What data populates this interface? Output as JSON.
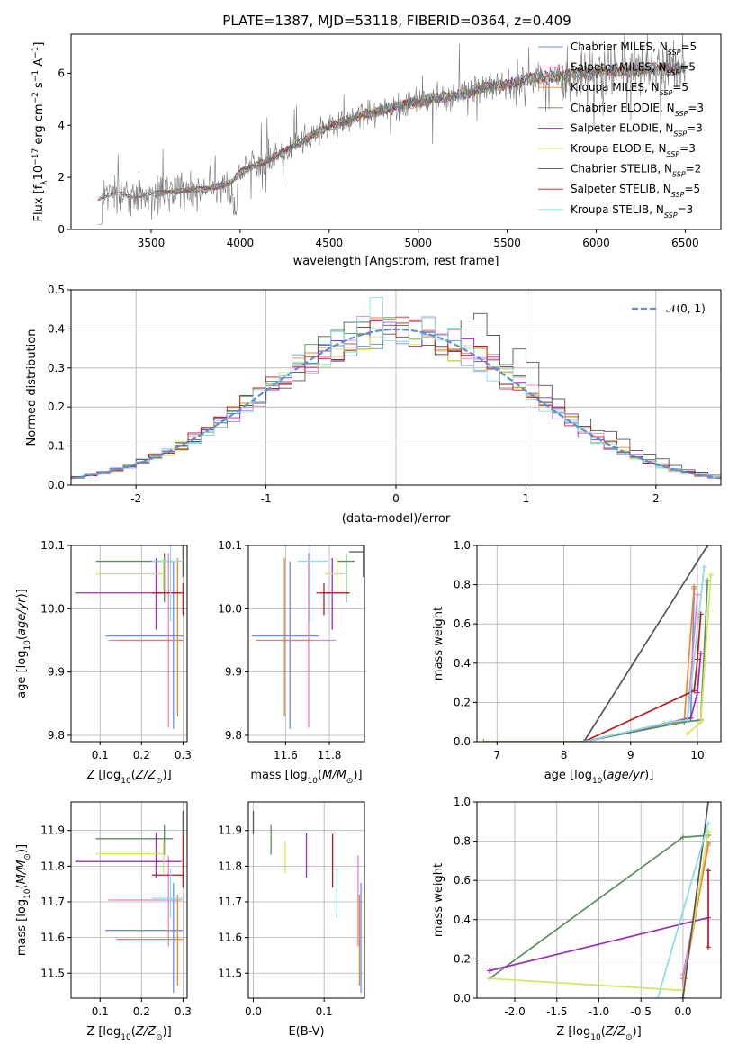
{
  "figure_title": "PLATE=1387, MJD=53118, FIBERID=0364, z=0.409",
  "colors": {
    "chabrier_miles": "#6b8ff0",
    "salpeter_miles": "#f07fc0",
    "kroupa_miles": "#e8872a",
    "chabrier_elodie": "#5e8c62",
    "salpeter_elodie": "#9b30b0",
    "kroupa_elodie": "#d4e55b",
    "chabrier_stelib": "#555555",
    "salpeter_stelib": "#b81c1c",
    "kroupa_stelib": "#84dfe6",
    "data": "#777777",
    "normal": "#5b8fd6"
  },
  "chart_data": [
    {
      "id": "spectrum",
      "type": "line",
      "title": "PLATE=1387, MJD=53118, FIBERID=0364, z=0.409",
      "xlabel": "wavelength [Angstrom, rest frame]",
      "ylabel": "Flux [f_λ 10^-17 erg cm^-2 s^-1 A^-1]",
      "xlim": [
        3050,
        6700
      ],
      "ylim": [
        0,
        7.5
      ],
      "xticks": [
        3500,
        4000,
        4500,
        5000,
        5500,
        6000,
        6500
      ],
      "yticks": [
        0,
        2,
        4,
        6
      ],
      "grid": false,
      "legend_position": "top-right",
      "legend": [
        {
          "label": "Chabrier MILES, N_SSP=5",
          "text": "Chabrier MILES, N",
          "sub": "SSP",
          "tail": "=5",
          "color_key": "chabrier_miles"
        },
        {
          "label": "Salpeter MILES, N_SSP=5",
          "text": "Salpeter MILES, N",
          "sub": "SSP",
          "tail": "=5",
          "color_key": "salpeter_miles"
        },
        {
          "label": "Kroupa MILES, N_SSP=5",
          "text": "Kroupa MILES, N",
          "sub": "SSP",
          "tail": "=5",
          "color_key": "kroupa_miles"
        },
        {
          "label": "Chabrier ELODIE, N_SSP=3",
          "text": "Chabrier ELODIE, N",
          "sub": "SSP",
          "tail": "=3",
          "color_key": "chabrier_elodie"
        },
        {
          "label": "Salpeter ELODIE, N_SSP=3",
          "text": "Salpeter ELODIE, N",
          "sub": "SSP",
          "tail": "=3",
          "color_key": "salpeter_elodie"
        },
        {
          "label": "Kroupa ELODIE, N_SSP=3",
          "text": "Kroupa ELODIE, N",
          "sub": "SSP",
          "tail": "=3",
          "color_key": "kroupa_elodie"
        },
        {
          "label": "Chabrier STELIB, N_SSP=2",
          "text": "Chabrier STELIB, N",
          "sub": "SSP",
          "tail": "=2",
          "color_key": "chabrier_stelib"
        },
        {
          "label": "Salpeter STELIB, N_SSP=5",
          "text": "Salpeter STELIB, N",
          "sub": "SSP",
          "tail": "=5",
          "color_key": "salpeter_stelib"
        },
        {
          "label": "Kroupa STELIB, N_SSP=3",
          "text": "Kroupa STELIB, N",
          "sub": "SSP",
          "tail": "=3",
          "color_key": "kroupa_stelib"
        }
      ],
      "continuum": {
        "x": [
          3200,
          3300,
          3400,
          3500,
          3600,
          3700,
          3800,
          3900,
          3950,
          4000,
          4100,
          4200,
          4300,
          4400,
          4500,
          4600,
          4700,
          4800,
          4900,
          5000,
          5100,
          5200,
          5300,
          5400,
          5500,
          5600,
          5700,
          5800,
          5900,
          6000,
          6100,
          6200,
          6300,
          6400,
          6500
        ],
        "y": [
          1.2,
          1.35,
          1.3,
          1.35,
          1.45,
          1.5,
          1.55,
          1.7,
          1.8,
          2.2,
          2.5,
          2.8,
          3.2,
          3.6,
          3.95,
          4.2,
          4.4,
          4.6,
          4.75,
          4.9,
          5.05,
          5.15,
          5.3,
          5.45,
          5.6,
          5.75,
          5.85,
          5.9,
          6.0,
          6.05,
          6.1,
          6.1,
          6.15,
          6.2,
          6.2
        ]
      },
      "model_x_range": [
        3200,
        6500
      ],
      "data_x_range": [
        3200,
        6500
      ]
    },
    {
      "id": "residual_histogram",
      "type": "line",
      "xlabel": "(data-model)/error",
      "ylabel": "Normed distribution",
      "xlim": [
        -2.5,
        2.5
      ],
      "ylim": [
        0,
        0.5
      ],
      "xticks": [
        -2,
        -1,
        0,
        1,
        2
      ],
      "yticks": [
        0,
        0.1,
        0.2,
        0.3,
        0.4,
        0.5
      ],
      "grid": true,
      "legend_position": "top-right",
      "legend": [
        {
          "label": "N(0,1)",
          "text": "𝒩(0, 1)",
          "color_key": "normal"
        }
      ],
      "normal_curve": {
        "mean": 0,
        "sigma": 1
      },
      "bin_width": 0.1
    },
    {
      "id": "age_vs_Z",
      "type": "scatter",
      "xlabel": "Z [log10(Z/Z⊙)]",
      "ylabel": "age [log10(age/yr)]",
      "xlim": [
        0.03,
        0.31
      ],
      "ylim": [
        9.79,
        10.1
      ],
      "xticks": [
        0.1,
        0.2,
        0.3
      ],
      "yticks": [
        9.8,
        9.9,
        10.0,
        10.1
      ],
      "grid": true
    },
    {
      "id": "age_vs_mass",
      "type": "scatter",
      "xlabel": "mass [log10(M/M⊙)]",
      "ylabel": "",
      "xlim": [
        11.43,
        11.96
      ],
      "ylim": [
        9.79,
        10.1
      ],
      "xticks": [
        11.6,
        11.8
      ],
      "yticks": [
        9.8,
        9.9,
        10.0,
        10.1
      ],
      "grid": true
    },
    {
      "id": "weight_vs_age",
      "type": "line",
      "xlabel": "age [log10(age/yr)]",
      "ylabel": "mass weight",
      "xlim": [
        6.7,
        10.35
      ],
      "ylim": [
        0,
        1
      ],
      "xticks": [
        7,
        8,
        9,
        10
      ],
      "yticks": [
        0,
        0.2,
        0.4,
        0.6,
        0.8,
        1.0
      ],
      "grid": true
    },
    {
      "id": "mass_vs_Z",
      "type": "scatter",
      "xlabel": "Z [log10(Z/Z⊙)]",
      "ylabel": "mass [log10(M/M⊙)]",
      "xlim": [
        0.03,
        0.31
      ],
      "ylim": [
        11.43,
        11.98
      ],
      "xticks": [
        0.1,
        0.2,
        0.3
      ],
      "yticks": [
        11.5,
        11.6,
        11.7,
        11.8,
        11.9
      ],
      "grid": true
    },
    {
      "id": "mass_vs_ebv",
      "type": "scatter",
      "xlabel": "E(B-V)",
      "ylabel": "",
      "xlim": [
        -0.007,
        0.157
      ],
      "ylim": [
        11.43,
        11.98
      ],
      "xticks": [
        0.0,
        0.1
      ],
      "yticks": [
        11.5,
        11.6,
        11.7,
        11.8,
        11.9
      ],
      "grid": true
    },
    {
      "id": "weight_vs_Z",
      "type": "line",
      "xlabel": "Z [log10(Z/Z⊙)]",
      "ylabel": "mass weight",
      "xlim": [
        -2.45,
        0.45
      ],
      "ylim": [
        0,
        1
      ],
      "xticks": [
        -2.0,
        -1.5,
        -1.0,
        -0.5,
        0.0
      ],
      "yticks": [
        0,
        0.2,
        0.4,
        0.6,
        0.8,
        1.0
      ],
      "grid": true
    }
  ],
  "models": [
    {
      "key": "chabrier_miles",
      "Z": 0.277,
      "Zlo": 0.113,
      "Zhi": 0.3,
      "age": 9.957,
      "ageLo": 9.81,
      "ageHi": 10.075,
      "mass": 11.62,
      "massLo": 11.445,
      "massHi": 11.753,
      "ebv": 0.152,
      "cum_age": [
        [
          8.3,
          0.0
        ],
        [
          9.6,
          0.1
        ],
        [
          9.9,
          0.12
        ],
        [
          9.95,
          0.78
        ]
      ],
      "cum_Z": [
        [
          0.0,
          0.0
        ],
        [
          0.0,
          0.1
        ],
        [
          0.3,
          0.78
        ]
      ]
    },
    {
      "key": "salpeter_miles",
      "Z": 0.265,
      "Zlo": 0.12,
      "Zhi": 0.298,
      "age": 9.95,
      "ageLo": 9.812,
      "ageHi": 10.088,
      "mass": 11.705,
      "massLo": 11.575,
      "massHi": 11.83,
      "ebv": 0.148,
      "cum_age": [
        [
          8.3,
          0.0
        ],
        [
          9.6,
          0.1
        ],
        [
          9.85,
          0.12
        ],
        [
          10.0,
          0.75
        ]
      ],
      "cum_Z": [
        [
          0.0,
          0.0
        ],
        [
          0.0,
          0.12
        ],
        [
          0.29,
          0.75
        ]
      ]
    },
    {
      "key": "kroupa_miles",
      "Z": 0.287,
      "Zlo": 0.14,
      "Zhi": 0.3,
      "age": 9.95,
      "ageLo": 9.83,
      "ageHi": 10.08,
      "mass": 11.595,
      "massLo": 11.465,
      "massHi": 11.72,
      "ebv": 0.15,
      "cum_age": [
        [
          6.8,
          0.0
        ],
        [
          8.3,
          0.0
        ],
        [
          9.5,
          0.09
        ],
        [
          9.8,
          0.1
        ],
        [
          9.95,
          0.79
        ]
      ],
      "cum_Z": [
        [
          0.0,
          0.0
        ],
        [
          0.02,
          0.1
        ],
        [
          0.3,
          0.79
        ]
      ]
    },
    {
      "key": "chabrier_elodie",
      "Z": 0.255,
      "Zlo": 0.09,
      "Zhi": 0.276,
      "age": 10.075,
      "ageLo": 10.01,
      "ageHi": 10.088,
      "mass": 11.877,
      "massLo": 11.832,
      "massHi": 11.915,
      "ebv": 0.025,
      "cum_age": [
        [
          8.3,
          0.0
        ],
        [
          9.8,
          0.1
        ],
        [
          10.05,
          0.11
        ],
        [
          10.15,
          0.82
        ]
      ],
      "cum_Z": [
        [
          -2.3,
          0.1
        ],
        [
          0.0,
          0.82
        ],
        [
          0.3,
          0.83
        ]
      ]
    },
    {
      "key": "salpeter_elodie",
      "Z": 0.235,
      "Zlo": 0.04,
      "Zhi": 0.296,
      "age": 10.025,
      "ageLo": 9.967,
      "ageHi": 10.08,
      "mass": 11.813,
      "massLo": 11.768,
      "massHi": 11.893,
      "ebv": 0.075,
      "cum_age": [
        [
          8.3,
          0.0
        ],
        [
          9.9,
          0.12
        ],
        [
          10.0,
          0.25
        ],
        [
          10.05,
          0.45
        ]
      ],
      "cum_Z": [
        [
          -2.3,
          0.14
        ],
        [
          0.3,
          0.41
        ]
      ]
    },
    {
      "key": "kroupa_elodie",
      "Z": 0.253,
      "Zlo": 0.09,
      "Zhi": 0.253,
      "age": 10.055,
      "ageLo": 10.03,
      "ageHi": 10.08,
      "mass": 11.835,
      "massLo": 11.78,
      "massHi": 11.87,
      "ebv": 0.045,
      "cum_age": [
        [
          9.85,
          0.04
        ],
        [
          10.05,
          0.1
        ],
        [
          10.2,
          0.85
        ]
      ],
      "cum_Z": [
        [
          -2.3,
          0.1
        ],
        [
          0.0,
          0.04
        ],
        [
          0.3,
          0.85
        ]
      ]
    },
    {
      "key": "chabrier_stelib",
      "Z": 0.3,
      "Zlo": 0.3,
      "Zhi": 0.3,
      "age": 10.09,
      "ageLo": 10.05,
      "ageHi": 10.1,
      "mass": 11.955,
      "massLo": 11.89,
      "massHi": 11.955,
      "ebv": 0.0,
      "cum_age": [
        [
          8.3,
          0.0
        ],
        [
          10.15,
          1.0
        ]
      ],
      "cum_Z": [
        [
          0.0,
          0.0
        ],
        [
          0.3,
          1.0
        ]
      ]
    },
    {
      "key": "salpeter_stelib",
      "Z": 0.3,
      "Zlo": 0.225,
      "Zhi": 0.3,
      "age": 10.025,
      "ageLo": 9.99,
      "ageHi": 10.04,
      "mass": 11.775,
      "massLo": 11.74,
      "massHi": 11.89,
      "ebv": 0.112,
      "cum_age": [
        [
          8.3,
          0.0
        ],
        [
          9.95,
          0.26
        ],
        [
          10.0,
          0.42
        ],
        [
          10.05,
          0.65
        ]
      ],
      "cum_Z": [
        [
          0.3,
          0.26
        ],
        [
          0.3,
          0.65
        ]
      ]
    },
    {
      "key": "kroupa_stelib",
      "Z": 0.27,
      "Zlo": 0.225,
      "Zhi": 0.3,
      "age": 10.075,
      "ageLo": 9.98,
      "ageHi": 10.1,
      "mass": 11.71,
      "massLo": 11.655,
      "massHi": 11.793,
      "ebv": 0.118,
      "cum_age": [
        [
          8.3,
          0.0
        ],
        [
          9.6,
          0.1
        ],
        [
          9.85,
          0.11
        ],
        [
          10.1,
          0.89
        ]
      ],
      "cum_Z": [
        [
          -0.3,
          0.0
        ],
        [
          0.3,
          0.89
        ]
      ]
    }
  ]
}
